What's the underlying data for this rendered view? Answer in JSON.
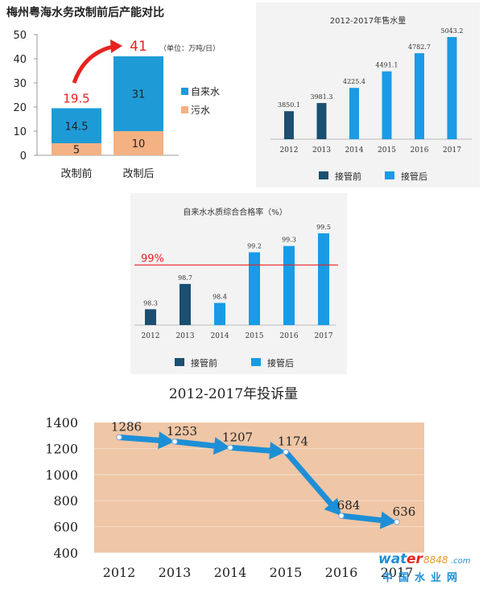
{
  "chart_data": [
    {
      "type": "bar",
      "stacked": true,
      "title": "梅州粤海水务改制前后产能对比",
      "unit_note": "（单位：万吨/日）",
      "categories": [
        "改制前",
        "改制后"
      ],
      "series": [
        {
          "name": "污水",
          "values": [
            5,
            10
          ],
          "color": "#f4b183"
        },
        {
          "name": "自来水",
          "values": [
            14.5,
            31
          ],
          "color": "#1e9bd7"
        }
      ],
      "totals": [
        19.5,
        41
      ],
      "ylim": [
        0,
        50
      ],
      "yticks": [
        0,
        10,
        20,
        30,
        40,
        50
      ],
      "total_label_color": "#e8231f"
    },
    {
      "type": "bar",
      "title": "2012-2017年售水量",
      "categories": [
        "2012",
        "2013",
        "2014",
        "2015",
        "2016",
        "2017"
      ],
      "values": [
        3850.1,
        3981.3,
        4225.4,
        4491.1,
        4782.7,
        5043.2
      ],
      "value_labels": [
        "3850.1",
        "3981.3",
        "4225.4",
        "4491.1",
        "4782.7",
        "5043.2"
      ],
      "groups": [
        "before",
        "before",
        "after",
        "after",
        "after",
        "after"
      ],
      "legend": [
        {
          "key": "before",
          "label": "接管前",
          "color": "#1b4f72"
        },
        {
          "key": "after",
          "label": "接管后",
          "color": "#1a9be6"
        }
      ]
    },
    {
      "type": "bar",
      "title": "自来水水质综合合格率（%）",
      "categories": [
        "2012",
        "2013",
        "2014",
        "2015",
        "2016",
        "2017"
      ],
      "values": [
        98.3,
        98.7,
        98.4,
        99.2,
        99.3,
        99.5
      ],
      "value_labels": [
        "98.3",
        "98.7",
        "98.4",
        "99.2",
        "99.3",
        "99.5"
      ],
      "groups": [
        "before",
        "before",
        "after",
        "after",
        "after",
        "after"
      ],
      "legend": [
        {
          "key": "before",
          "label": "接管前",
          "color": "#1b4f72"
        },
        {
          "key": "after",
          "label": "接管后",
          "color": "#1a9be6"
        }
      ],
      "reference_line": {
        "value": 99,
        "label": "99%",
        "color": "#e8231f"
      }
    },
    {
      "type": "line",
      "title": "2012-2017年投诉量",
      "x": [
        "2012",
        "2013",
        "2014",
        "2015",
        "2016",
        "2017"
      ],
      "values": [
        1286,
        1253,
        1207,
        1174,
        684,
        636
      ],
      "value_labels": [
        "1286",
        "1253",
        "1207",
        "1174",
        "684",
        "636"
      ],
      "ylim": [
        400,
        1400
      ],
      "yticks": [
        400,
        600,
        800,
        1000,
        1200,
        1400
      ],
      "plot_background": "#efc6a6",
      "line_color": "#1d8fd6"
    }
  ],
  "watermark": {
    "brand": "water8848.com",
    "site": "中国水业网"
  }
}
